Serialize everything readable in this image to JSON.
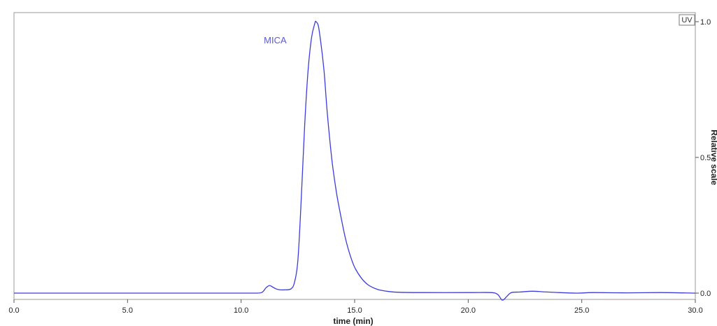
{
  "chart_data": {
    "type": "line",
    "xlabel": "time (min)",
    "ylabel": "Relative scale",
    "xlim": [
      0,
      30
    ],
    "ylim": [
      0,
      1.0
    ],
    "x_ticks": [
      "0.0",
      "5.0",
      "10.0",
      "15.0",
      "20.0",
      "25.0",
      "30.0"
    ],
    "y_ticks": [
      "0.0",
      "0.5",
      "1.0"
    ],
    "legend": {
      "label": "UV",
      "placement": "top-right"
    },
    "grid": false,
    "series": [
      {
        "name": "UV",
        "color": "#3c3cdc",
        "points": [
          [
            0.0,
            0.0
          ],
          [
            5.0,
            0.0
          ],
          [
            9.0,
            0.0
          ],
          [
            10.5,
            0.0
          ],
          [
            10.9,
            0.002
          ],
          [
            11.1,
            0.02
          ],
          [
            11.25,
            0.028
          ],
          [
            11.4,
            0.022
          ],
          [
            11.6,
            0.014
          ],
          [
            11.9,
            0.012
          ],
          [
            12.2,
            0.016
          ],
          [
            12.35,
            0.04
          ],
          [
            12.5,
            0.12
          ],
          [
            12.65,
            0.35
          ],
          [
            12.8,
            0.62
          ],
          [
            12.95,
            0.82
          ],
          [
            13.1,
            0.94
          ],
          [
            13.25,
            0.995
          ],
          [
            13.3,
            1.0
          ],
          [
            13.4,
            0.985
          ],
          [
            13.5,
            0.93
          ],
          [
            13.65,
            0.82
          ],
          [
            13.8,
            0.66
          ],
          [
            14.0,
            0.49
          ],
          [
            14.2,
            0.37
          ],
          [
            14.4,
            0.28
          ],
          [
            14.6,
            0.2
          ],
          [
            14.8,
            0.14
          ],
          [
            15.0,
            0.095
          ],
          [
            15.3,
            0.055
          ],
          [
            15.6,
            0.03
          ],
          [
            16.0,
            0.014
          ],
          [
            16.5,
            0.006
          ],
          [
            17.0,
            0.003
          ],
          [
            18.0,
            0.002
          ],
          [
            20.0,
            0.002
          ],
          [
            21.0,
            0.002
          ],
          [
            21.3,
            -0.005
          ],
          [
            21.5,
            -0.026
          ],
          [
            21.7,
            -0.012
          ],
          [
            21.9,
            0.002
          ],
          [
            22.3,
            0.004
          ],
          [
            22.8,
            0.007
          ],
          [
            23.3,
            0.005
          ],
          [
            24.0,
            0.002
          ],
          [
            24.8,
            0.0
          ],
          [
            25.5,
            0.002
          ],
          [
            27.0,
            0.001
          ],
          [
            28.5,
            0.002
          ],
          [
            30.0,
            0.0
          ]
        ]
      }
    ],
    "annotations": [
      {
        "text": "MICA",
        "x": 11.0,
        "y": 0.92,
        "color": "#5a5ad6"
      }
    ]
  }
}
